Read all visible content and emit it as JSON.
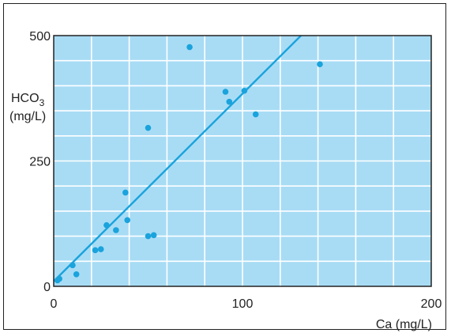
{
  "chart_data": {
    "type": "scatter",
    "xlabel": "Ca (mg/L)",
    "ylabel_main": "HCO",
    "ylabel_sub": "3",
    "ylabel_unit": "(mg/L)",
    "xlim": [
      0,
      200
    ],
    "ylim": [
      0,
      500
    ],
    "x_ticks": [
      0,
      100,
      200
    ],
    "y_ticks": [
      0,
      250,
      500
    ],
    "grid": true,
    "colors": {
      "background": "#a8dcf5",
      "grid": "#ffffff",
      "points": "#1aa3dc",
      "line": "#1aa3dc",
      "axis": "#222222"
    },
    "points": [
      [
        2,
        12
      ],
      [
        3,
        15
      ],
      [
        10,
        42
      ],
      [
        12,
        24
      ],
      [
        22,
        72
      ],
      [
        25,
        74
      ],
      [
        28,
        122
      ],
      [
        33,
        112
      ],
      [
        38,
        187
      ],
      [
        39,
        132
      ],
      [
        50,
        316
      ],
      [
        50,
        100
      ],
      [
        53,
        102
      ],
      [
        72,
        477
      ],
      [
        91,
        388
      ],
      [
        93,
        368
      ],
      [
        101,
        390
      ],
      [
        107,
        343
      ],
      [
        141,
        443
      ]
    ],
    "trend_line": {
      "x": [
        0,
        131
      ],
      "y": [
        10,
        500
      ]
    }
  }
}
